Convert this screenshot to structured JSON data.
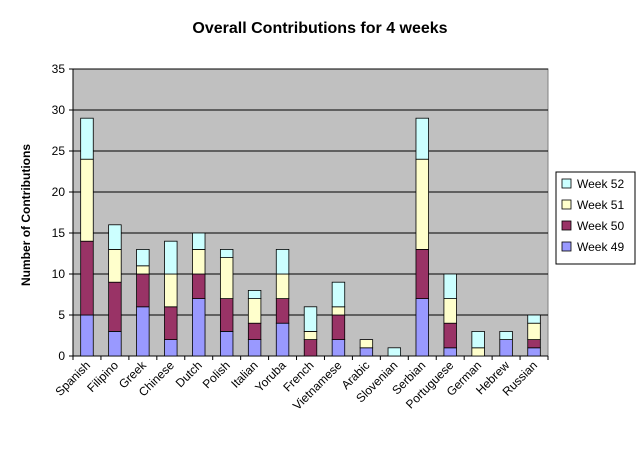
{
  "chart_data": {
    "type": "bar",
    "stacked": true,
    "title": "Overall Contributions for 4 weeks",
    "xlabel": "",
    "ylabel": "Number of Contributions",
    "ylim": [
      0,
      35
    ],
    "yticks": [
      0,
      5,
      10,
      15,
      20,
      25,
      30,
      35
    ],
    "grid": true,
    "legend_position": "right",
    "plot_background": "#c0c0c0",
    "categories": [
      "Spanish",
      "Filipino",
      "Greek",
      "Chinese",
      "Dutch",
      "Polish",
      "Italian",
      "Yoruba",
      "French",
      "Vietnamese",
      "Arabic",
      "Slovenian",
      "Serbian",
      "Portuguese",
      "German",
      "Hebrew",
      "Russian"
    ],
    "series": [
      {
        "name": "Week 49",
        "color": "#9999ff",
        "values": [
          5,
          3,
          6,
          2,
          7,
          3,
          2,
          4,
          0,
          2,
          1,
          0,
          7,
          1,
          0,
          2,
          1
        ]
      },
      {
        "name": "Week 50",
        "color": "#993366",
        "values": [
          9,
          6,
          4,
          4,
          3,
          4,
          2,
          3,
          2,
          3,
          0,
          0,
          6,
          3,
          0,
          0,
          1
        ]
      },
      {
        "name": "Week 51",
        "color": "#ffffcc",
        "values": [
          10,
          4,
          1,
          4,
          3,
          5,
          3,
          3,
          1,
          1,
          1,
          0,
          11,
          3,
          1,
          0,
          2
        ]
      },
      {
        "name": "Week 52",
        "color": "#ccffff",
        "values": [
          5,
          3,
          2,
          4,
          2,
          1,
          1,
          3,
          3,
          3,
          0,
          1,
          5,
          3,
          2,
          1,
          1
        ]
      }
    ]
  }
}
